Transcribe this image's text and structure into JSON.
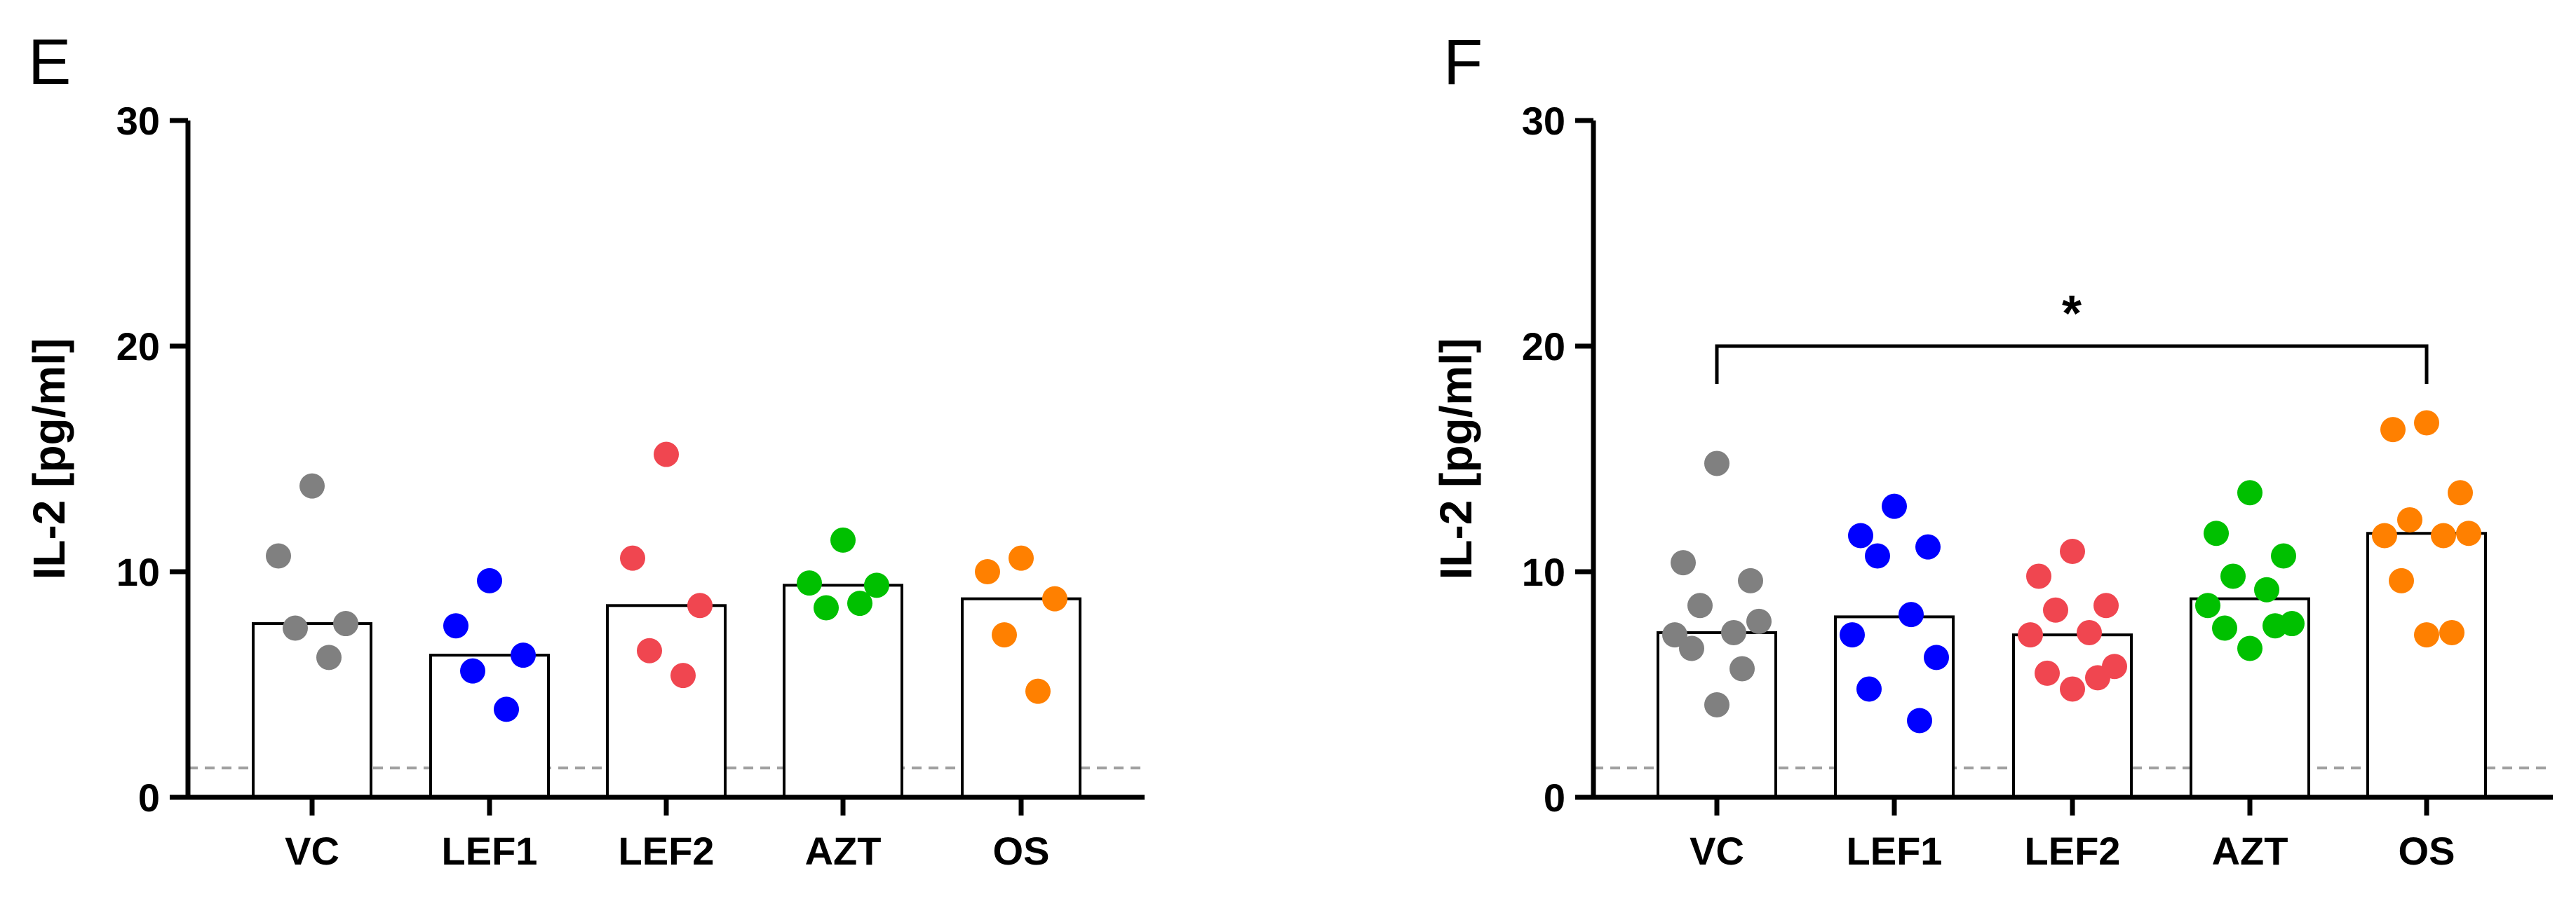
{
  "chart_data": [
    {
      "type": "bar",
      "panel": "E",
      "ylabel": "IL-2 [pg/ml]",
      "xlabel": "",
      "ylim": [
        0,
        30
      ],
      "yticks": [
        "0",
        "10",
        "20",
        "30"
      ],
      "categories": [
        "VC",
        "LEF1",
        "LEF2",
        "AZT",
        "OS"
      ],
      "colors": [
        "#808080",
        "#0000ff",
        "#f04650",
        "#00c000",
        "#ff8000"
      ],
      "bar_values": [
        7.7,
        6.3,
        8.5,
        9.4,
        8.8
      ],
      "points": [
        [
          13.8,
          10.7,
          7.7,
          7.5,
          6.2
        ],
        [
          9.6,
          7.6,
          6.3,
          5.6,
          3.9
        ],
        [
          15.2,
          10.6,
          8.5,
          6.5,
          5.4
        ],
        [
          11.4,
          9.5,
          9.4,
          8.4,
          8.6
        ],
        [
          10.6,
          10.0,
          8.8,
          7.2,
          4.7
        ]
      ],
      "lod": 1.3,
      "significance": null
    },
    {
      "type": "bar",
      "panel": "F",
      "ylabel": "IL-2 [pg/ml]",
      "xlabel": "",
      "ylim": [
        0,
        30
      ],
      "yticks": [
        "0",
        "10",
        "20",
        "30"
      ],
      "categories": [
        "VC",
        "LEF1",
        "LEF2",
        "AZT",
        "OS"
      ],
      "colors": [
        "#808080",
        "#0000ff",
        "#f04650",
        "#00c000",
        "#ff8000"
      ],
      "bar_values": [
        7.3,
        8.0,
        7.2,
        8.8,
        11.7
      ],
      "points": [
        [
          14.8,
          10.4,
          9.6,
          8.5,
          7.3,
          7.2,
          7.8,
          6.6,
          5.7,
          4.1
        ],
        [
          12.9,
          11.6,
          11.1,
          10.7,
          8.1,
          7.2,
          6.2,
          4.8,
          3.4
        ],
        [
          10.9,
          9.8,
          8.5,
          8.3,
          7.3,
          7.2,
          5.8,
          5.5,
          5.3,
          4.8
        ],
        [
          13.5,
          11.7,
          10.7,
          9.8,
          9.2,
          8.5,
          7.7,
          7.5,
          7.6,
          6.6
        ],
        [
          16.6,
          16.3,
          13.5,
          12.3,
          11.6,
          11.6,
          11.7,
          9.6,
          7.3,
          7.2
        ]
      ],
      "lod": 1.3,
      "significance": {
        "from": "VC",
        "to": "OS",
        "label": "*",
        "y": 20
      }
    }
  ]
}
